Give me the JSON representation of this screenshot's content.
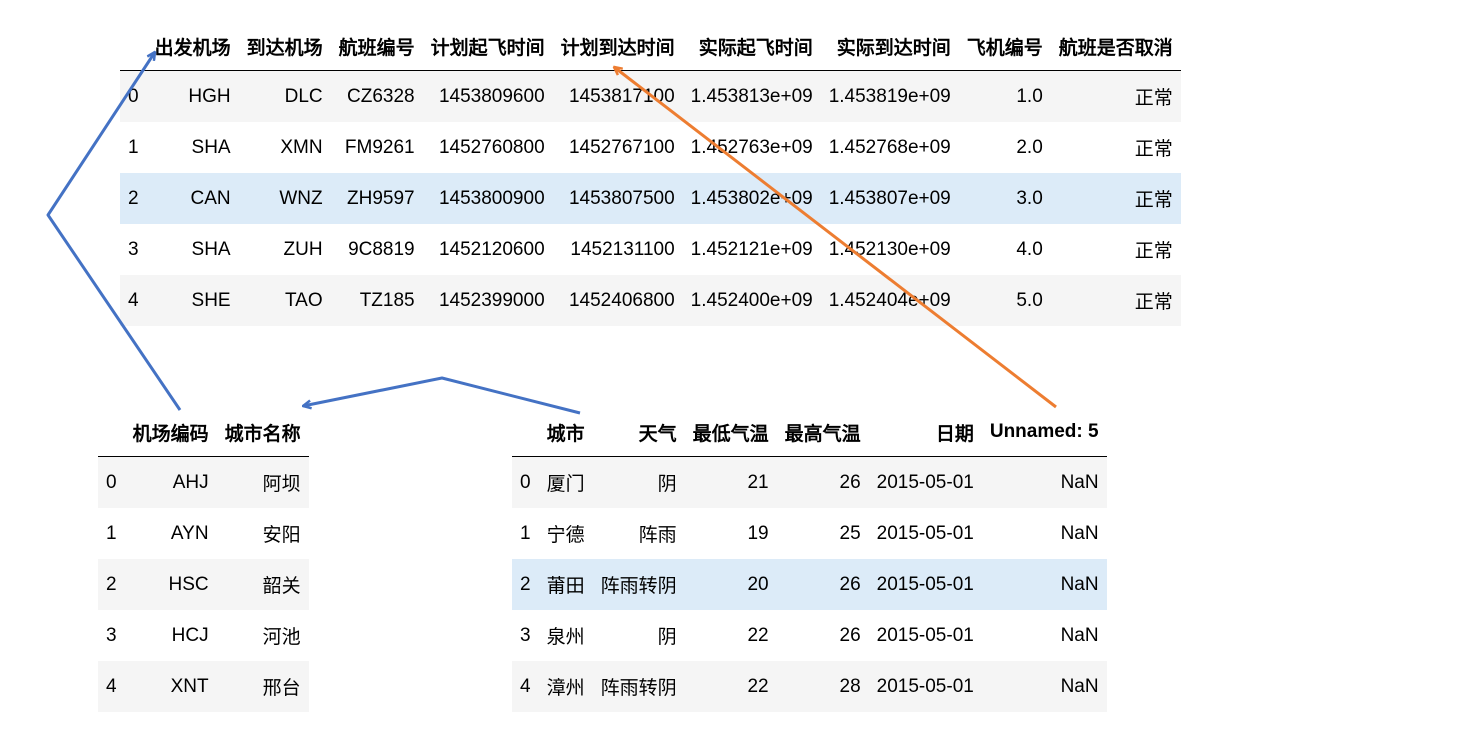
{
  "flights": {
    "columns": [
      "出发机场",
      "到达机场",
      "航班编号",
      "计划起飞时间",
      "计划到达时间",
      "实际起飞时间",
      "实际到达时间",
      "飞机编号",
      "航班是否取消"
    ],
    "rows": [
      {
        "index": "0",
        "cells": [
          "HGH",
          "DLC",
          "CZ6328",
          "1453809600",
          "1453817100",
          "1.453813e+09",
          "1.453819e+09",
          "1.0",
          "正常"
        ]
      },
      {
        "index": "1",
        "cells": [
          "SHA",
          "XMN",
          "FM9261",
          "1452760800",
          "1452767100",
          "1.452763e+09",
          "1.452768e+09",
          "2.0",
          "正常"
        ]
      },
      {
        "index": "2",
        "cells": [
          "CAN",
          "WNZ",
          "ZH9597",
          "1453800900",
          "1453807500",
          "1.453802e+09",
          "1.453807e+09",
          "3.0",
          "正常"
        ]
      },
      {
        "index": "3",
        "cells": [
          "SHA",
          "ZUH",
          "9C8819",
          "1452120600",
          "1452131100",
          "1.452121e+09",
          "1.452130e+09",
          "4.0",
          "正常"
        ]
      },
      {
        "index": "4",
        "cells": [
          "SHE",
          "TAO",
          "TZ185",
          "1452399000",
          "1452406800",
          "1.452400e+09",
          "1.452404e+09",
          "5.0",
          "正常"
        ]
      }
    ],
    "highlight_row": 2
  },
  "airports": {
    "columns": [
      "机场编码",
      "城市名称"
    ],
    "rows": [
      {
        "index": "0",
        "cells": [
          "AHJ",
          "阿坝"
        ]
      },
      {
        "index": "1",
        "cells": [
          "AYN",
          "安阳"
        ]
      },
      {
        "index": "2",
        "cells": [
          "HSC",
          "韶关"
        ]
      },
      {
        "index": "3",
        "cells": [
          "HCJ",
          "河池"
        ]
      },
      {
        "index": "4",
        "cells": [
          "XNT",
          "邢台"
        ]
      }
    ]
  },
  "weather": {
    "columns": [
      "城市",
      "天气",
      "最低气温",
      "最高气温",
      "日期",
      "Unnamed: 5"
    ],
    "rows": [
      {
        "index": "0",
        "cells": [
          "厦门",
          "阴",
          "21",
          "26",
          "2015-05-01",
          "NaN"
        ]
      },
      {
        "index": "1",
        "cells": [
          "宁德",
          "阵雨",
          "19",
          "25",
          "2015-05-01",
          "NaN"
        ]
      },
      {
        "index": "2",
        "cells": [
          "莆田",
          "阵雨转阴",
          "20",
          "26",
          "2015-05-01",
          "NaN"
        ]
      },
      {
        "index": "3",
        "cells": [
          "泉州",
          "阴",
          "22",
          "26",
          "2015-05-01",
          "NaN"
        ]
      },
      {
        "index": "4",
        "cells": [
          "漳州",
          "阵雨转阴",
          "22",
          "28",
          "2015-05-01",
          "NaN"
        ]
      }
    ],
    "highlight_row": 2
  },
  "colors": {
    "blue_arrow": "#4472c4",
    "orange_arrow": "#ed7d31",
    "row_highlight": "#dcebf8",
    "row_stripe": "#f5f5f5"
  }
}
